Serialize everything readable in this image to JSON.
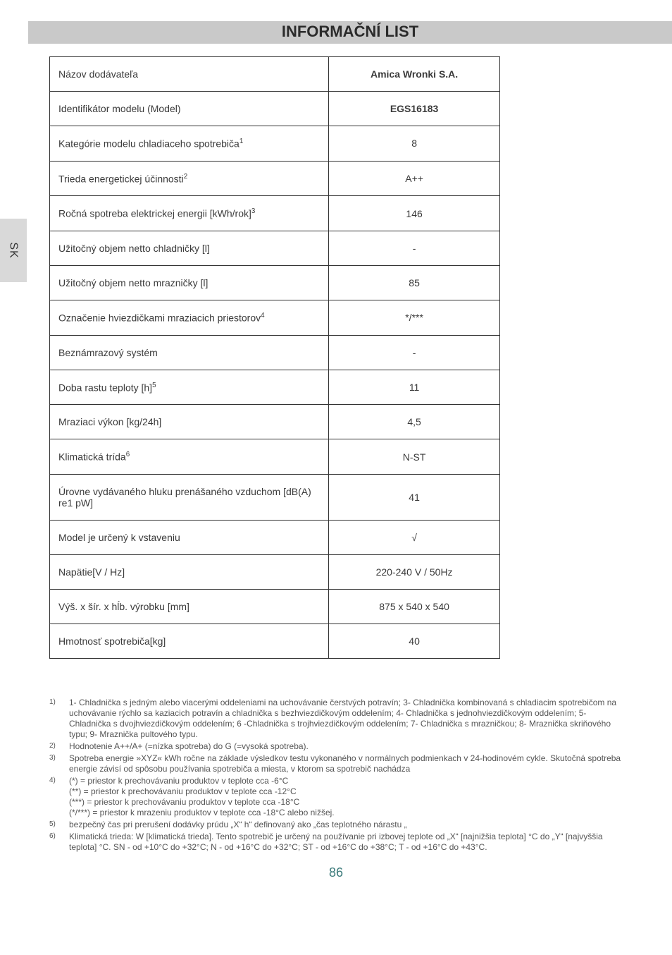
{
  "title": "INFORMAČNÍ LIST",
  "side_tab": "SK",
  "table": {
    "rows": [
      {
        "label": "Názov dodávateľa",
        "value": "Amica Wronki S.A.",
        "bold_value": true
      },
      {
        "label": "Identifikátor modelu (Model)",
        "value": "EGS16183",
        "bold_value": true
      },
      {
        "label": "Kategórie modelu chladiaceho spotrebiča",
        "sup": "1",
        "value": "8"
      },
      {
        "label": "Trieda energetickej účinnosti",
        "sup": "2",
        "value": "A++"
      },
      {
        "label": "Ročná spotreba  elektrickej energii [kWh/rok]",
        "sup": "3",
        "value": "146"
      },
      {
        "label": "Užitočný objem netto chladničky [l]",
        "value": "-"
      },
      {
        "label": "Užitočný objem netto mrazničky [l]",
        "value": "85"
      },
      {
        "label": "Označenie hviezdičkami mraziacich priestorov",
        "sup": "4",
        "value": "*/***"
      },
      {
        "label": "Beznámrazový systém",
        "value": "-"
      },
      {
        "label": "Doba rastu teploty [h]",
        "sup": "5",
        "value": "11"
      },
      {
        "label": "Mraziaci výkon [kg/24h]",
        "value": "4,5"
      },
      {
        "label": "Klimatická trída",
        "sup": "6",
        "value": "N-ST"
      },
      {
        "label": "Úrovne vydávaného hluku prenášaného vzduchom [dB(A) re1 pW]",
        "value": "41"
      },
      {
        "label": "Model je určený k vstaveniu",
        "value": "√"
      },
      {
        "label": "Napätie[V / Hz]",
        "value": "220-240 V / 50Hz"
      },
      {
        "label": "Výš. x šír. x hĺb. výrobku [mm]",
        "value": "875 x 540 x 540"
      },
      {
        "label": "Hmotnosť spotrebiča[kg]",
        "value": "40"
      }
    ]
  },
  "footnotes": [
    {
      "n": "1)",
      "t": "1- Chladnička s jedným alebo viacerými oddeleniami na uchovávanie čerstvých potravín; 3- Chladnička kombinovaná s chladiacim spotrebičom na uchovávanie rýchlo sa kaziacich potravín a chladnička s bezhviezdičkovým oddelením; 4- Chladnička s jednohviezdičkovým oddelením; 5- Chladnička s dvojhviezdičkovým oddelením; 6 -Chladnička s trojhviezdičkovým oddelením; 7- Chladnička s mrazničkou; 8- Mraznička skriňového typu; 9- Mraznička pultového typu."
    },
    {
      "n": "2)",
      "t": "Hodnotenie A++/A+ (=nízka spotreba) do G (=vysoká spotreba)."
    },
    {
      "n": "3)",
      "t": "Spotreba energie »XYZ« kWh ročne na základe výsledkov testu vykonaného v normálnych podmienkach v 24-hodinovém cykle. Skutočná spotreba energie závisí od spôsobu používania spotrebiča a miesta, v ktorom sa spotrebič nachádza"
    },
    {
      "n": "4)",
      "t": "(*) = priestor k prechovávaniu produktov v teplote cca -6°C\n(**) = priestor k prechovávaniu produktov v teplote cca -12°C\n(***) = priestor k prechovávaniu produktov v teplote cca -18°C\n(*/***) = priestor k mrazeniu produktov v teplote cca -18°C alebo nižšej."
    },
    {
      "n": "5)",
      "t": "bezpečný čas pri prerušení dodávky prúdu „X“ h“ definovaný ako „čas teplotného nárastu „"
    },
    {
      "n": "6)",
      "t": "Klimatická trieda: W [klimatická trieda]. Tento spotrebič je určený na používanie pri izbovej teplote od „X“ [najnižšia teplota] °C do „Y“ [najvyššia teplota] °C. SN - od +10°C do +32°C; N - od +16°C do +32°C; ST - od +16°C do +38°C; T - od +16°C do +43°C."
    }
  ],
  "page_number": "86",
  "colors": {
    "title_bg": "#c9c9c9",
    "side_bg": "#d9d9d9",
    "text": "#3a3a3a",
    "pagenum": "#3a7a7a"
  }
}
